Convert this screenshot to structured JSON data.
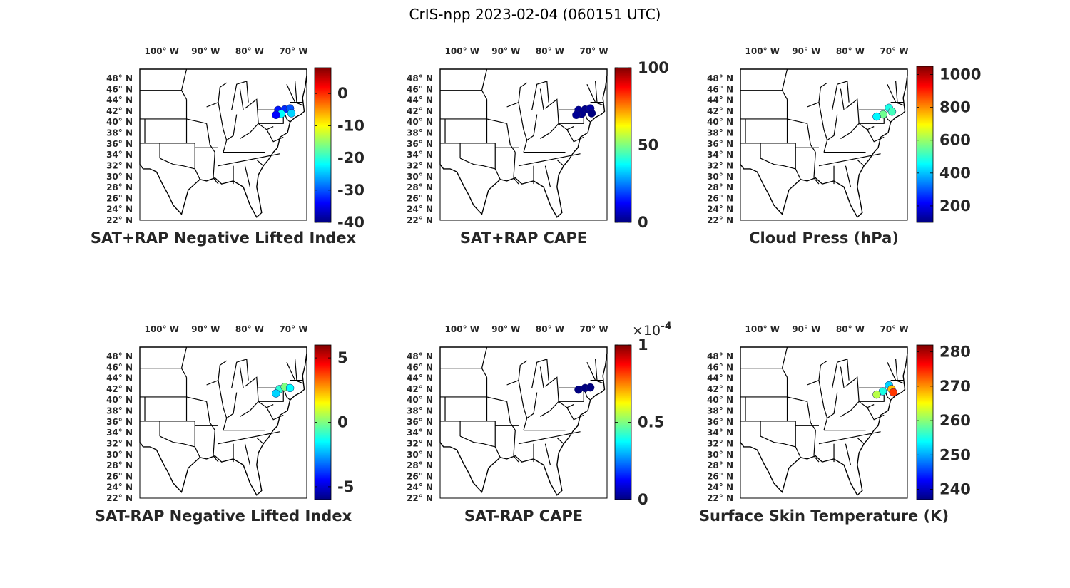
{
  "figure_title": "CrIS-npp 2023-02-04 (060151 UTC)",
  "lon_ticks": [
    "100° W",
    "90° W",
    "80° W",
    "70° W"
  ],
  "lat_ticks": [
    "48° N",
    "46° N",
    "44° N",
    "42° N",
    "40° N",
    "38° N",
    "36° N",
    "34° N",
    "32° N",
    "30° N",
    "28° N",
    "26° N",
    "24° N",
    "22° N"
  ],
  "colormap": "jet",
  "chart_data": [
    {
      "type": "heatmap",
      "title": "SAT+RAP Negative Lifted Index",
      "region": "Eastern United States",
      "colorbar": {
        "ticks": [
          0,
          -10,
          -20,
          -30,
          -40
        ],
        "range": [
          -40,
          8
        ],
        "multiplier": ""
      },
      "observations": [
        {
          "lon": -73.5,
          "lat": 42.2,
          "value": -33
        },
        {
          "lon": -72.0,
          "lat": 42.3,
          "value": -32
        },
        {
          "lon": -70.8,
          "lat": 42.5,
          "value": -30
        },
        {
          "lon": -70.5,
          "lat": 41.6,
          "value": -24
        },
        {
          "lon": -72.8,
          "lat": 41.5,
          "value": -22
        },
        {
          "lon": -74.0,
          "lat": 41.3,
          "value": -34
        }
      ]
    },
    {
      "type": "heatmap",
      "title": "SAT+RAP CAPE",
      "region": "Eastern United States",
      "colorbar": {
        "ticks": [
          100,
          50,
          0
        ],
        "range": [
          0,
          100
        ],
        "multiplier": ""
      },
      "observations": [
        {
          "lon": -73.5,
          "lat": 42.2,
          "value": 2
        },
        {
          "lon": -72.0,
          "lat": 42.3,
          "value": 1
        },
        {
          "lon": -70.8,
          "lat": 42.5,
          "value": 3
        },
        {
          "lon": -70.5,
          "lat": 41.6,
          "value": 0
        },
        {
          "lon": -72.8,
          "lat": 41.5,
          "value": 1
        },
        {
          "lon": -74.0,
          "lat": 41.3,
          "value": 2
        }
      ]
    },
    {
      "type": "heatmap",
      "title": "Cloud Press (hPa)",
      "region": "Eastern United States",
      "colorbar": {
        "ticks": [
          1000,
          800,
          600,
          400,
          200
        ],
        "range": [
          100,
          1050
        ],
        "multiplier": ""
      },
      "observations": [
        {
          "lon": -71.2,
          "lat": 42.6,
          "value": 480
        },
        {
          "lon": -70.5,
          "lat": 41.9,
          "value": 520
        },
        {
          "lon": -72.5,
          "lat": 41.4,
          "value": 560
        },
        {
          "lon": -74.0,
          "lat": 41.0,
          "value": 450
        }
      ]
    },
    {
      "type": "heatmap",
      "title": "SAT-RAP Negative Lifted Index",
      "region": "Eastern United States",
      "colorbar": {
        "ticks": [
          5,
          0,
          -5
        ],
        "range": [
          -6,
          6
        ],
        "multiplier": ""
      },
      "observations": [
        {
          "lon": -73.2,
          "lat": 42.0,
          "value": -1
        },
        {
          "lon": -72.0,
          "lat": 42.4,
          "value": 0
        },
        {
          "lon": -70.8,
          "lat": 42.2,
          "value": -1.5
        },
        {
          "lon": -74.0,
          "lat": 41.2,
          "value": -2
        }
      ]
    },
    {
      "type": "heatmap",
      "title": "SAT-RAP CAPE",
      "region": "Eastern United States",
      "colorbar": {
        "ticks": [
          1,
          0.5,
          0
        ],
        "range": [
          0,
          1
        ],
        "multiplier": "×10",
        "multiplier_exp": "-4"
      },
      "observations": [
        {
          "lon": -73.5,
          "lat": 41.9,
          "value": 0
        },
        {
          "lon": -72.0,
          "lat": 42.2,
          "value": 0
        },
        {
          "lon": -70.8,
          "lat": 42.3,
          "value": 0
        }
      ]
    },
    {
      "type": "heatmap",
      "title": "Surface Skin Temperature (K)",
      "region": "Eastern United States",
      "colorbar": {
        "ticks": [
          280,
          270,
          260,
          250,
          240
        ],
        "range": [
          237,
          282
        ],
        "multiplier": ""
      },
      "observations": [
        {
          "lon": -71.2,
          "lat": 42.7,
          "value": 252
        },
        {
          "lon": -70.6,
          "lat": 42.0,
          "value": 268
        },
        {
          "lon": -72.6,
          "lat": 41.6,
          "value": 255
        },
        {
          "lon": -74.0,
          "lat": 41.0,
          "value": 262
        },
        {
          "lon": -70.2,
          "lat": 41.4,
          "value": 274
        }
      ]
    }
  ]
}
